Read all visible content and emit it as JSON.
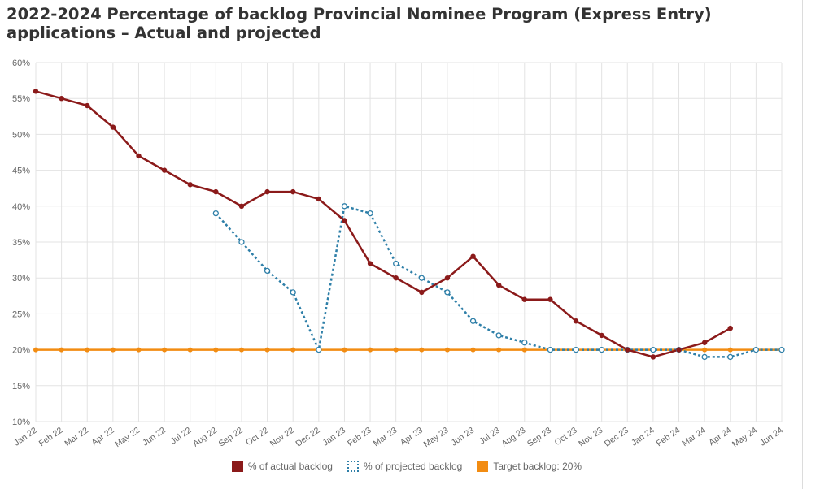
{
  "title": "2022-2024 Percentage of backlog Provincial Nominee Program (Express Entry) applications – Actual and projected",
  "colors": {
    "actual": "#8b1a1a",
    "projected": "#2e7fa8",
    "target": "#f28c12",
    "grid": "#e3e3e3"
  },
  "chart_data": {
    "type": "line",
    "title": "2022-2024 Percentage of backlog Provincial Nominee Program (Express Entry) applications – Actual and projected",
    "xlabel": "",
    "ylabel": "",
    "ylim": [
      10,
      60
    ],
    "y_ticks": [
      "10%",
      "15%",
      "20%",
      "25%",
      "30%",
      "35%",
      "40%",
      "45%",
      "50%",
      "55%",
      "60%"
    ],
    "categories": [
      "Jan 22",
      "Feb 22",
      "Mar 22",
      "Apr 22",
      "May 22",
      "Jun 22",
      "Jul 22",
      "Aug 22",
      "Sep 22",
      "Oct 22",
      "Nov 22",
      "Dec 22",
      "Jan 23",
      "Feb 23",
      "Mar 23",
      "Apr 23",
      "May 23",
      "Jun 23",
      "Jul 23",
      "Aug 23",
      "Sep 23",
      "Oct 23",
      "Nov 23",
      "Dec 23",
      "Jan 24",
      "Feb 24",
      "Mar 24",
      "Apr 24",
      "May 24",
      "Jun 24"
    ],
    "grid": true,
    "legend_position": "bottom",
    "series": [
      {
        "name": "% of actual backlog",
        "style": "solid",
        "values": [
          56,
          55,
          54,
          51,
          47,
          45,
          43,
          42,
          40,
          42,
          42,
          41,
          38,
          32,
          30,
          28,
          30,
          33,
          29,
          27,
          27,
          24,
          22,
          20,
          19,
          20,
          21,
          23,
          null,
          null
        ]
      },
      {
        "name": "% of projected backlog",
        "style": "dotted",
        "values": [
          null,
          null,
          null,
          null,
          null,
          null,
          null,
          39,
          35,
          31,
          28,
          20,
          40,
          39,
          32,
          30,
          28,
          24,
          22,
          21,
          20,
          20,
          20,
          20,
          20,
          20,
          19,
          19,
          20,
          20
        ]
      },
      {
        "name": "Target backlog: 20%",
        "style": "solid",
        "values": [
          20,
          20,
          20,
          20,
          20,
          20,
          20,
          20,
          20,
          20,
          20,
          20,
          20,
          20,
          20,
          20,
          20,
          20,
          20,
          20,
          20,
          20,
          20,
          20,
          20,
          20,
          20,
          20,
          20,
          20
        ]
      }
    ]
  }
}
